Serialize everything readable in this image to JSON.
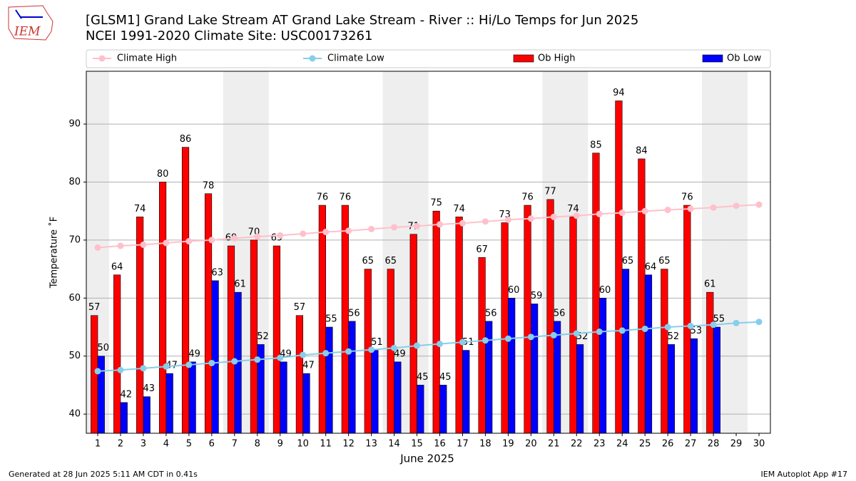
{
  "chart_data": {
    "type": "bar",
    "title": "[GLSM1] Grand Lake Stream  AT Grand Lake Stream - River :: Hi/Lo Temps for Jun 2025",
    "subtitle": "NCEI 1991-2020 Climate Site: USC00173261",
    "xlabel": "June 2025",
    "ylabel": "Temperature ˚F",
    "footer_left": "Generated at 28 Jun 2025 5:11 AM CDT in 0.41s",
    "footer_right": "IEM Autoplot App #17",
    "logo": "IEM",
    "x": [
      1,
      2,
      3,
      4,
      5,
      6,
      7,
      8,
      9,
      10,
      11,
      12,
      13,
      14,
      15,
      16,
      17,
      18,
      19,
      20,
      21,
      22,
      23,
      24,
      25,
      26,
      27,
      28,
      29,
      30
    ],
    "xlim": [
      0.5,
      30.5
    ],
    "xticks": [
      1,
      2,
      3,
      4,
      5,
      6,
      7,
      8,
      9,
      10,
      11,
      12,
      13,
      14,
      15,
      16,
      17,
      18,
      19,
      20,
      21,
      22,
      23,
      24,
      25,
      26,
      27,
      28,
      29,
      30
    ],
    "ylim": [
      36.7,
      99.1
    ],
    "yticks": [
      40,
      50,
      60,
      70,
      80,
      90
    ],
    "grid": true,
    "shaded_days": [
      1,
      7,
      8,
      14,
      15,
      21,
      22,
      28,
      29
    ],
    "series": [
      {
        "name": "Climate High",
        "kind": "line",
        "color": "#ffc0cb",
        "values": [
          68.7,
          69.0,
          69.2,
          69.5,
          69.8,
          70.0,
          70.3,
          70.6,
          70.8,
          71.1,
          71.4,
          71.6,
          71.9,
          72.2,
          72.4,
          72.7,
          72.9,
          73.2,
          73.5,
          73.7,
          74.0,
          74.2,
          74.5,
          74.7,
          75.0,
          75.2,
          75.4,
          75.6,
          75.9,
          76.1
        ]
      },
      {
        "name": "Climate Low",
        "kind": "line",
        "color": "#87ceeb",
        "values": [
          47.4,
          47.6,
          47.9,
          48.2,
          48.5,
          48.8,
          49.1,
          49.4,
          49.7,
          50.2,
          50.5,
          50.8,
          51.1,
          51.4,
          51.8,
          52.1,
          52.4,
          52.7,
          53.0,
          53.3,
          53.6,
          53.9,
          54.2,
          54.4,
          54.7,
          55.0,
          55.2,
          55.4,
          55.7,
          55.9
        ]
      },
      {
        "name": "Ob High",
        "kind": "bar",
        "color": "#ff0000",
        "values": [
          57,
          64,
          74,
          80,
          86,
          78,
          69,
          70,
          69,
          57,
          76,
          76,
          65,
          65,
          71,
          75,
          74,
          67,
          73,
          76,
          77,
          74,
          85,
          94,
          84,
          65,
          76,
          61,
          null,
          null
        ]
      },
      {
        "name": "Ob Low",
        "kind": "bar",
        "color": "#0000ff",
        "values": [
          50,
          42,
          43,
          47,
          49,
          63,
          61,
          52,
          49,
          47,
          55,
          56,
          51,
          49,
          45,
          45,
          51,
          56,
          60,
          59,
          56,
          52,
          60,
          65,
          64,
          52,
          53,
          55,
          null,
          null
        ]
      }
    ]
  }
}
